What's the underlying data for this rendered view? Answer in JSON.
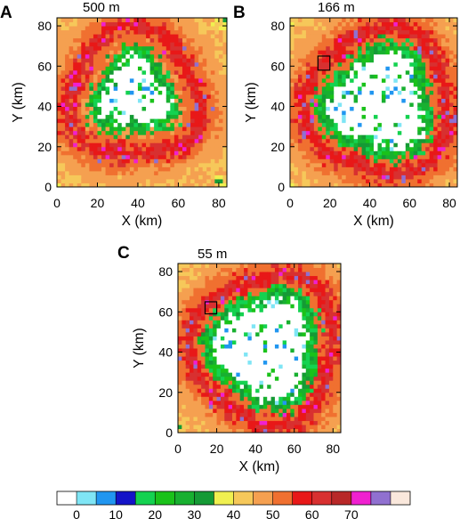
{
  "chart_data": {
    "type": "heatmap",
    "colorbar": {
      "levels": [
        0,
        5,
        10,
        15,
        20,
        25,
        30,
        35,
        40,
        45,
        50,
        55,
        60,
        65,
        70,
        75
      ],
      "colors": [
        "#ffffff",
        "#7fe5f5",
        "#2196f0",
        "#1414c8",
        "#14d250",
        "#1ac21a",
        "#18b030",
        "#159a35",
        "#f0f050",
        "#f6c85a",
        "#f5a050",
        "#f07030",
        "#e81818",
        "#d83030",
        "#b82828",
        "#f020d0",
        "#9070d0",
        "#fae8dc"
      ],
      "labels": [
        "0",
        "10",
        "20",
        "30",
        "40",
        "50",
        "60",
        "70"
      ]
    },
    "panels": [
      {
        "letter": "A",
        "title": "500 m",
        "xlabel": "X (km)",
        "ylabel": "Y (km)",
        "xlim": [
          0,
          84
        ],
        "ylim": [
          0,
          84
        ],
        "xticks": [
          "0",
          "20",
          "40",
          "60",
          "80"
        ],
        "yticks": [
          "0",
          "20",
          "40",
          "60",
          "80"
        ],
        "eye_center": [
          38,
          46
        ],
        "eye_radius_km": 19,
        "rmw_km": 32,
        "box": null
      },
      {
        "letter": "B",
        "title": "166 m",
        "xlabel": "X (km)",
        "ylabel": "Y (km)",
        "xlim": [
          0,
          84
        ],
        "ylim": [
          0,
          84
        ],
        "xticks": [
          "0",
          "20",
          "40",
          "60",
          "80"
        ],
        "yticks": [
          "0",
          "20",
          "40",
          "60",
          "80"
        ],
        "eye_center": [
          45,
          42
        ],
        "eye_radius_km": 26,
        "rmw_km": 36,
        "box": [
          14,
          58,
          20,
          65
        ]
      },
      {
        "letter": "C",
        "title": "55 m",
        "xlabel": "X (km)",
        "ylabel": "Y (km)",
        "xlim": [
          0,
          84
        ],
        "ylim": [
          0,
          84
        ],
        "xticks": [
          "0",
          "20",
          "40",
          "60",
          "80"
        ],
        "yticks": [
          "0",
          "20",
          "40",
          "60",
          "80"
        ],
        "eye_center": [
          45,
          42
        ],
        "eye_radius_km": 27,
        "rmw_km": 37,
        "box": [
          14,
          59,
          20,
          65
        ]
      }
    ]
  }
}
